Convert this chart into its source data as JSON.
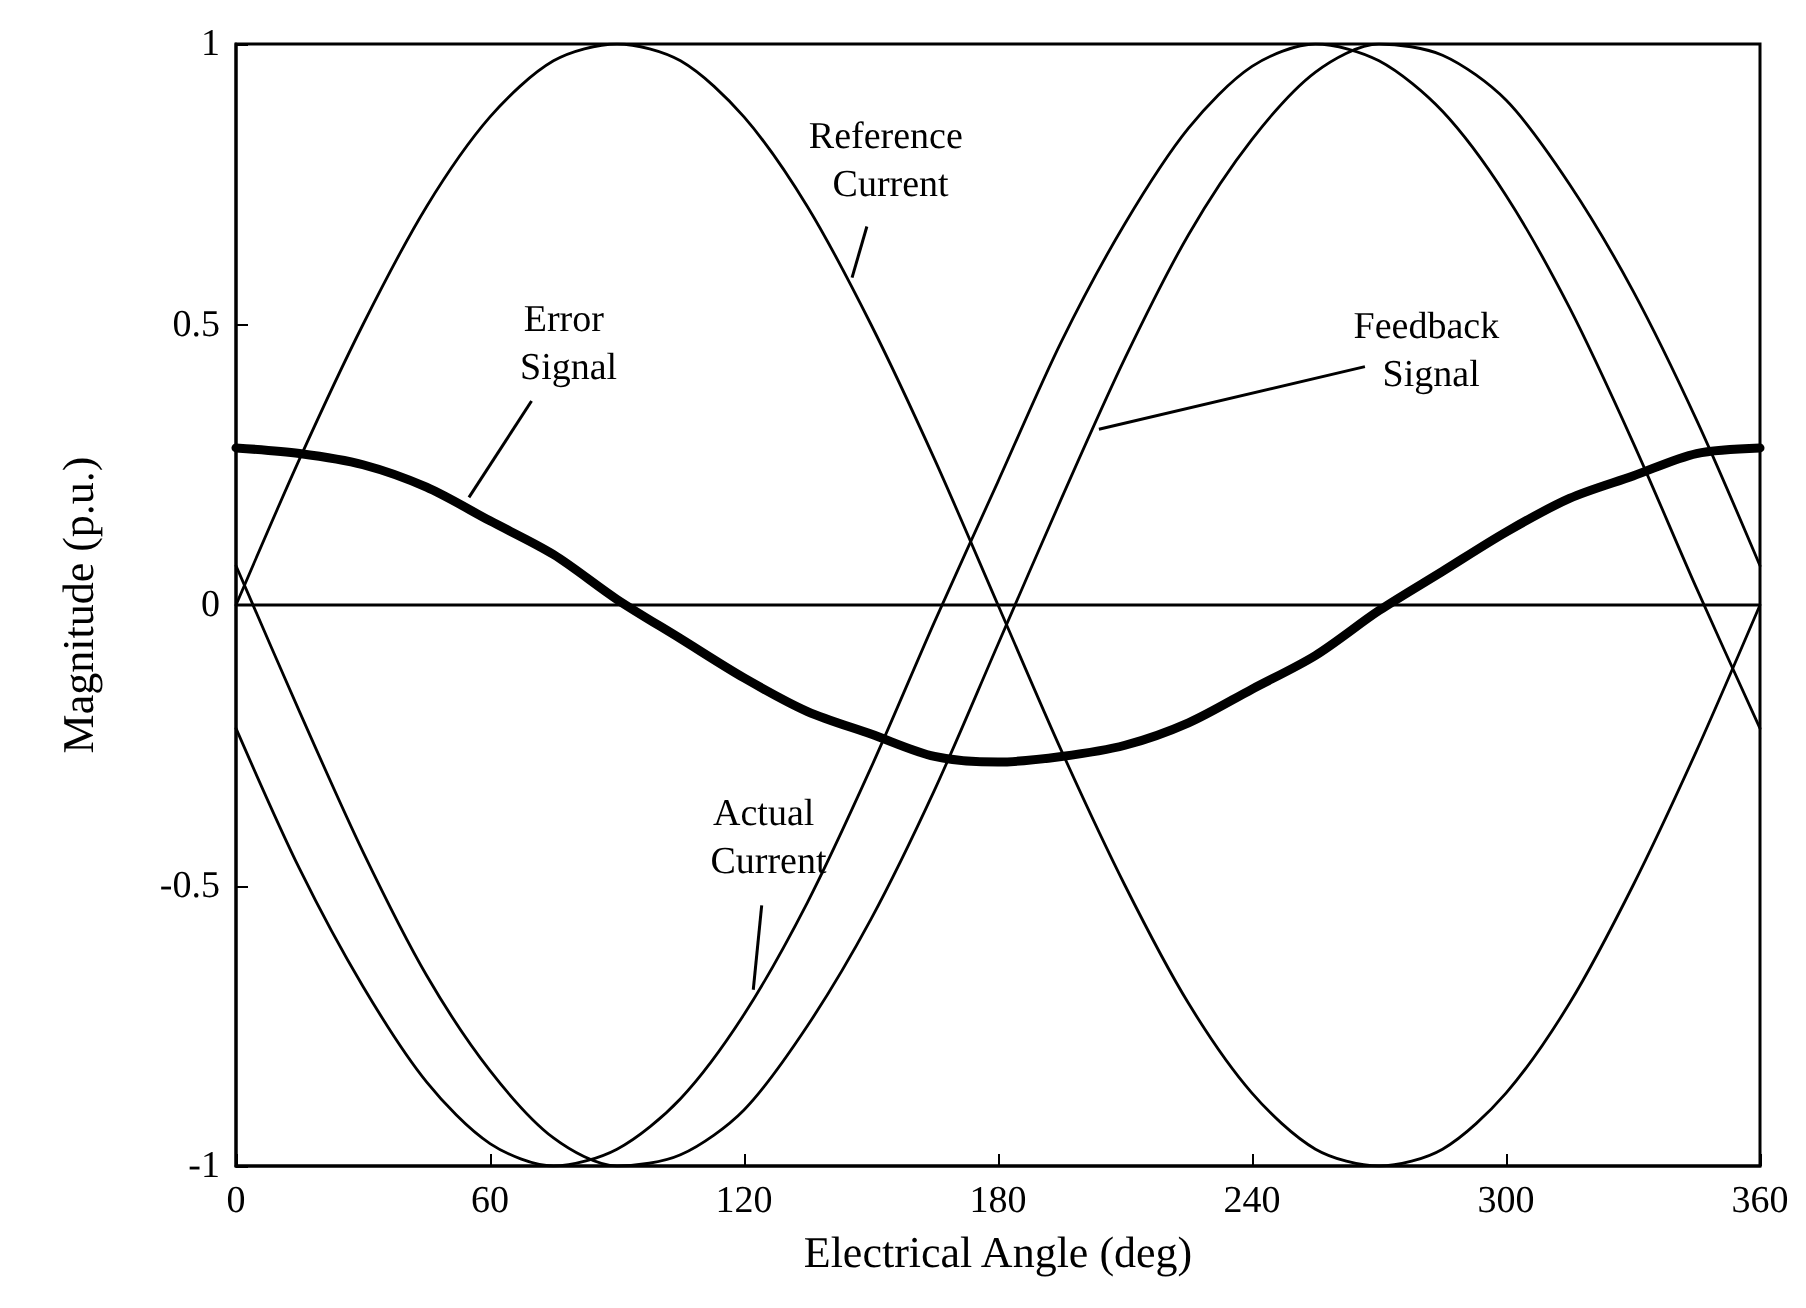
{
  "chart_data": {
    "type": "line",
    "xlabel": "Electrical Angle (deg)",
    "ylabel": "Magnitude (p.u.)",
    "x": [
      0,
      15,
      30,
      45,
      60,
      75,
      90,
      105,
      120,
      135,
      150,
      165,
      180,
      195,
      210,
      225,
      240,
      255,
      270,
      285,
      300,
      315,
      330,
      345,
      360
    ],
    "series": [
      {
        "color": "#000000",
        "values": [
          0,
          0.26,
          0.5,
          0.71,
          0.87,
          0.97,
          1,
          0.97,
          0.87,
          0.71,
          0.5,
          0.26,
          0,
          -0.26,
          -0.5,
          -0.71,
          -0.87,
          -0.97,
          -1,
          -0.97,
          -0.87,
          -0.71,
          -0.5,
          -0.26,
          0
        ]
      },
      {
        "color": "#000000",
        "values": [
          -0.22,
          -0.47,
          -0.68,
          -0.85,
          -0.96,
          -1,
          -0.97,
          -0.88,
          -0.73,
          -0.53,
          -0.29,
          -0.03,
          0.22,
          0.47,
          0.68,
          0.85,
          0.96,
          1,
          0.97,
          0.88,
          0.73,
          0.53,
          0.29,
          0.03,
          -0.22
        ]
      },
      {
        "color": "#000000",
        "values": [
          0.07,
          -0.19,
          -0.44,
          -0.66,
          -0.83,
          -0.95,
          -1,
          -0.98,
          -0.9,
          -0.75,
          -0.56,
          -0.33,
          -0.07,
          0.19,
          0.44,
          0.66,
          0.83,
          0.95,
          1,
          0.98,
          0.9,
          0.75,
          0.56,
          0.33,
          0.07
        ]
      },
      {
        "color": "#000000",
        "values": [
          0.28,
          0.27,
          0.25,
          0.21,
          0.15,
          0.09,
          0.01,
          -0.06,
          -0.13,
          -0.19,
          -0.23,
          -0.27,
          -0.28,
          -0.27,
          -0.25,
          -0.21,
          -0.15,
          -0.09,
          -0.01,
          0.06,
          0.13,
          0.19,
          0.23,
          0.27,
          0.28
        ]
      }
    ],
    "xlim": [
      0,
      360
    ],
    "xticks": [
      0,
      60,
      120,
      180,
      240,
      300,
      360
    ],
    "ylim": [
      -1,
      1
    ],
    "yticks": [
      -1,
      -0.5,
      0,
      0.5,
      1
    ],
    "ref_lines": [
      {
        "axis": "y",
        "value": 0,
        "color": "#000000"
      }
    ],
    "annotations": [
      {
        "text": "Reference Current",
        "x": 145,
        "y": 0.57
      },
      {
        "text": "Error Signal",
        "x": 54,
        "y": 0.18
      },
      {
        "text": "Feedback Signal",
        "x": 202,
        "y": 0.31
      },
      {
        "text": "Actual Current",
        "x": 122,
        "y": -0.7
      }
    ],
    "grid": false,
    "marker": "none",
    "line_style": "solid"
  }
}
